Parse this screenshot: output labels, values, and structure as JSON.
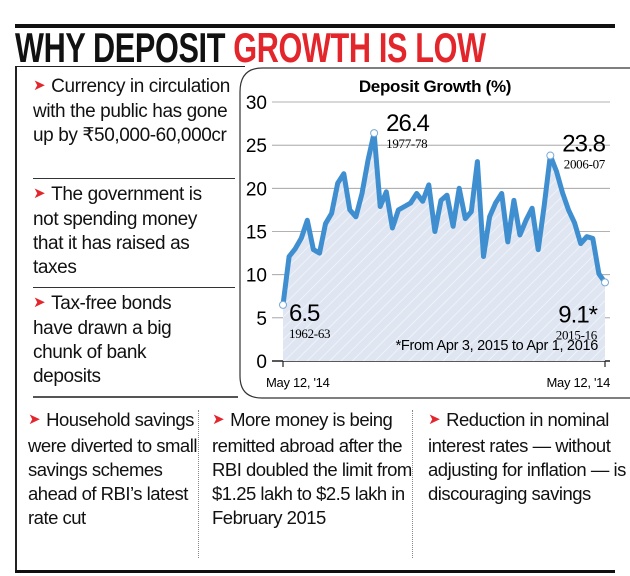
{
  "headline": {
    "part1": "WHY DEPOSIT ",
    "part2": "GROWTH IS LOW"
  },
  "colors": {
    "accent_red": "#e3262b",
    "line_blue": "#3f8fd0",
    "area_fill": "#dfe6f2"
  },
  "left_points": [
    {
      "icon": "arrow-bullet-icon",
      "text": "Currency in circulation with the public has gone up by ₹50,000-60,000cr"
    },
    {
      "icon": "arrow-bullet-icon",
      "text": "The government is not spending money that it has raised as taxes"
    },
    {
      "icon": "arrow-bullet-icon",
      "text": "Tax-free bonds have drawn a big chunk of bank deposits"
    }
  ],
  "bottom_points": [
    {
      "icon": "arrow-bullet-icon",
      "text": "Household savings were diverted to small savings schemes ahead of RBI’s latest rate cut"
    },
    {
      "icon": "arrow-bullet-icon",
      "text": "More money is being remitted abroad after the RBI doubled the limit from $1.25 lakh to $2.5 lakh in February 2015"
    },
    {
      "icon": "arrow-bullet-icon",
      "text": "Reduction in nominal interest rates — without adjusting for inflation — is discouraging savings"
    }
  ],
  "bullet_glyph": "➤",
  "chart_data": {
    "type": "area",
    "title": "Deposit Growth (%)",
    "ylim": [
      0,
      30
    ],
    "yticks": [
      "0",
      "5",
      "10",
      "15",
      "20",
      "25",
      "30"
    ],
    "xtick_labels": [
      "May 12, '14",
      "May 12, '14"
    ],
    "grid": true,
    "x": [
      1962,
      1963,
      1964,
      1965,
      1966,
      1967,
      1968,
      1969,
      1970,
      1971,
      1972,
      1973,
      1974,
      1975,
      1976,
      1977,
      1978,
      1979,
      1980,
      1981,
      1982,
      1983,
      1984,
      1985,
      1986,
      1987,
      1988,
      1989,
      1990,
      1991,
      1992,
      1993,
      1994,
      1995,
      1996,
      1997,
      1998,
      1999,
      2000,
      2001,
      2002,
      2003,
      2004,
      2005,
      2006,
      2007,
      2008,
      2009,
      2010,
      2011,
      2012,
      2013,
      2014,
      2015
    ],
    "values": [
      6.5,
      12.1,
      13,
      14.2,
      16.3,
      12.9,
      12.5,
      15.9,
      17.1,
      20.6,
      21.7,
      17.5,
      16.7,
      19.4,
      23.3,
      26.4,
      17.9,
      19.6,
      15.4,
      17.5,
      17.9,
      18.3,
      19.4,
      18.5,
      20.4,
      15,
      18.6,
      19.2,
      15.6,
      20,
      16.5,
      17.3,
      23.1,
      12.1,
      16.7,
      18.3,
      19.4,
      13.8,
      18.6,
      14.6,
      16.3,
      17.7,
      12.9,
      18,
      23.8,
      22,
      19.5,
      17.5,
      16,
      13.6,
      14.4,
      14.2,
      10.1,
      9.1
    ],
    "annotations": [
      {
        "index": 0,
        "value": "6.5",
        "label": "1962-63"
      },
      {
        "index": 15,
        "value": "26.4",
        "label": "1977-78"
      },
      {
        "index": 44,
        "value": "23.8",
        "label": "2006-07"
      },
      {
        "index": 53,
        "value": "9.1*",
        "label": "2015-16"
      }
    ],
    "footnote": "*From Apr 3, 2015 to Apr 1, 2016"
  }
}
